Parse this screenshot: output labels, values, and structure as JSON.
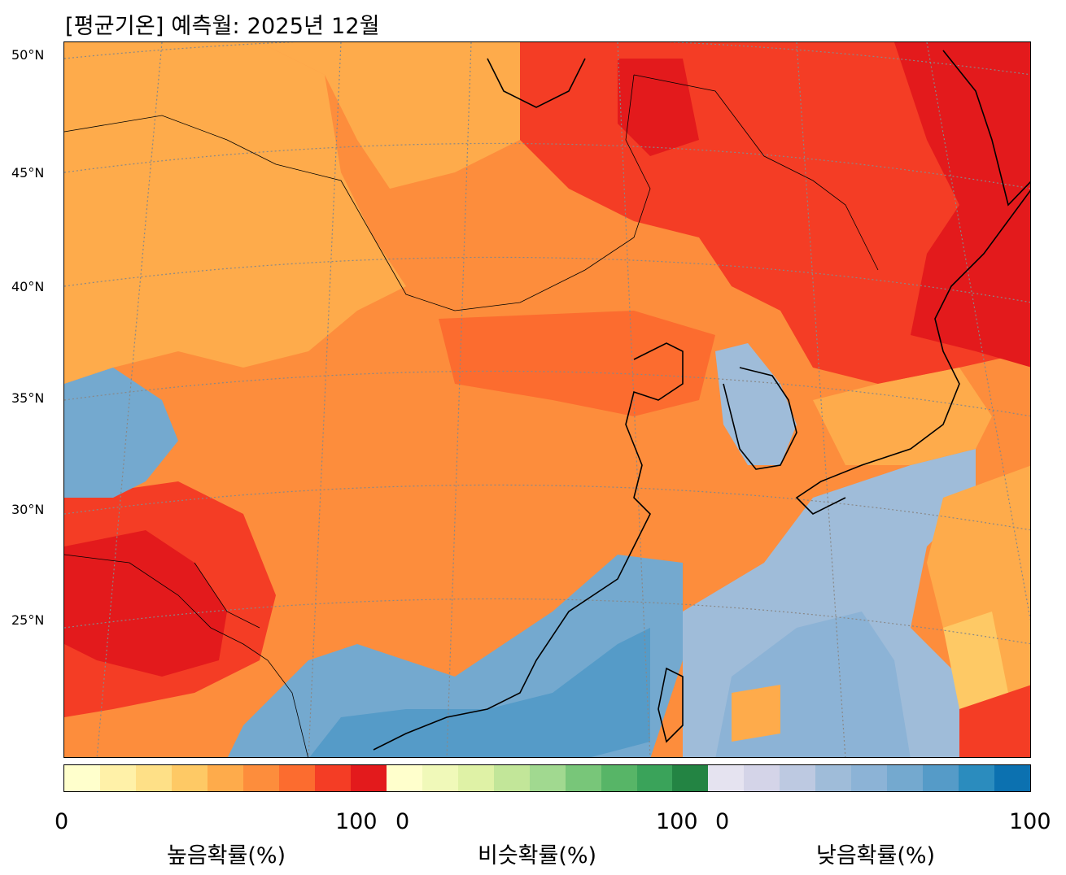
{
  "title": "[평균기온] 예측월: 2025년 12월",
  "lat_labels": [
    "50°N",
    "45°N",
    "40°N",
    "35°N",
    "30°N",
    "25°N"
  ],
  "colorbar": {
    "high": {
      "label": "높음확률(%)",
      "min": "0",
      "max": "100",
      "colors": [
        "#ffffcc",
        "#fff1a8",
        "#fee087",
        "#fec965",
        "#feab4b",
        "#fd8d3c",
        "#fc6c2f",
        "#f43d25",
        "#e31a1c"
      ]
    },
    "similar": {
      "label": "비슷확률(%)",
      "min": "0",
      "max": "100",
      "colors": [
        "#ffffcc",
        "#f0f9b9",
        "#dff2a6",
        "#c2e699",
        "#a1d990",
        "#78c679",
        "#57b567",
        "#3aa35a",
        "#238443"
      ]
    },
    "low": {
      "label": "낮음확률(%)",
      "min": "0",
      "max": "100",
      "colors": [
        "#e5e3f0",
        "#d4d4e8",
        "#bdc9e1",
        "#9fbcd9",
        "#8cb3d6",
        "#74a9cf",
        "#559bc8",
        "#2b8cbe",
        "#0c71b0"
      ]
    }
  },
  "map_regions": [
    {
      "name": "mongolia-high",
      "color": "#fd8d3c"
    },
    {
      "name": "northeast-very-high",
      "color": "#f43d25"
    },
    {
      "name": "southwest-very-high",
      "color": "#e31a1c"
    },
    {
      "name": "south-china-low",
      "color": "#74a9cf"
    },
    {
      "name": "west-pacific-low",
      "color": "#9fbcd9"
    }
  ]
}
